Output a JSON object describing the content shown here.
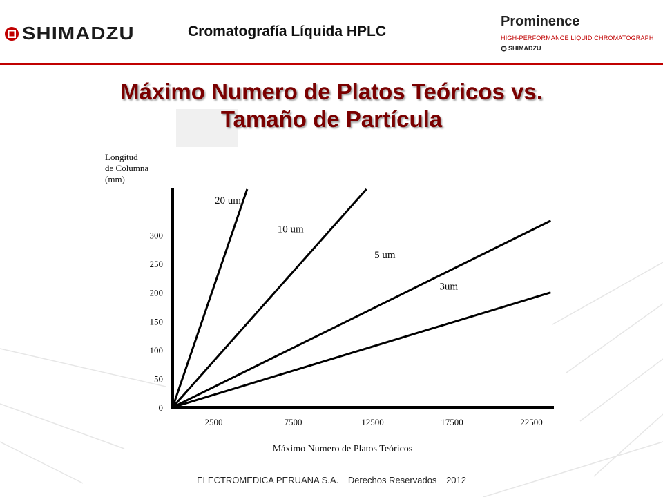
{
  "header": {
    "logo_text": "SHIMADZU",
    "title": "Cromatografía Líquida HPLC",
    "brand": {
      "name": "Prominence",
      "subtitle": "HIGH-PERFORMANCE  LIQUID CHROMATOGRAPH",
      "maker": "SHIMADZU"
    }
  },
  "slide": {
    "title_line1": "Máximo Numero de Platos Teóricos vs.",
    "title_line2": "Tamaño de Partícula"
  },
  "chart_data": {
    "type": "line",
    "xlabel": "Máximo Numero de Platos Teóricos",
    "ylabel": [
      "Longitud",
      "de Columna",
      "(mm)"
    ],
    "x_ticks": [
      2500,
      7500,
      12500,
      17500,
      22500
    ],
    "y_ticks": [
      0,
      50,
      100,
      150,
      200,
      250,
      300
    ],
    "xlim": [
      0,
      24000
    ],
    "ylim": [
      0,
      380
    ],
    "grid": false,
    "legend": "none",
    "series": [
      {
        "name": "20 um",
        "x": [
          0,
          4690
        ],
        "y": [
          0,
          380
        ]
      },
      {
        "name": "10 um",
        "x": [
          0,
          12200
        ],
        "y": [
          0,
          380
        ]
      },
      {
        "name": "5 um",
        "x": [
          0,
          23800
        ],
        "y": [
          0,
          325
        ]
      },
      {
        "name": "3um",
        "x": [
          0,
          23800
        ],
        "y": [
          0,
          200
        ]
      }
    ]
  },
  "footer": {
    "company": "ELECTROMEDICA PERUANA S.A.",
    "rights": "Derechos Reservados",
    "year": "2012"
  },
  "colors": {
    "accent_red": "#c00000",
    "title_red": "#7a0000",
    "line": "#000000"
  }
}
